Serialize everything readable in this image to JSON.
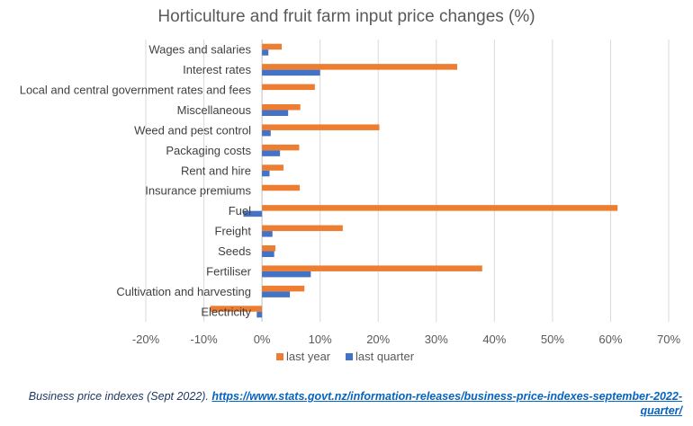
{
  "chart_data": {
    "type": "bar",
    "orientation": "horizontal",
    "title": "Horticulture and fruit farm input price changes (%)",
    "categories": [
      "Wages and salaries",
      "Interest rates",
      "Local and central government rates and fees",
      "Miscellaneous",
      "Weed and pest control",
      "Packaging costs",
      "Rent and hire",
      "Insurance premiums",
      "Fuel",
      "Freight",
      "Seeds",
      "Fertiliser",
      "Cultivation and harvesting",
      "Electricity"
    ],
    "series": [
      {
        "name": "last year",
        "color": "#ed7d31",
        "values": [
          3.4,
          33.6,
          9.1,
          6.6,
          20.2,
          6.4,
          3.7,
          6.5,
          61.2,
          13.9,
          2.3,
          37.9,
          7.3,
          -8.9
        ]
      },
      {
        "name": "last quarter",
        "color": "#4472c4",
        "values": [
          1.1,
          10.0,
          0,
          4.5,
          1.5,
          3.1,
          1.3,
          0,
          -3.2,
          1.8,
          2.1,
          8.4,
          4.8,
          -0.9
        ]
      }
    ],
    "xlim": [
      -20,
      70
    ],
    "ticks": [
      -20,
      -10,
      0,
      10,
      20,
      30,
      40,
      50,
      60,
      70
    ],
    "tick_labels": [
      "-20%",
      "-10%",
      "0%",
      "10%",
      "20%",
      "30%",
      "40%",
      "50%",
      "60%",
      "70%"
    ],
    "grid": true,
    "legend_position": "bottom"
  },
  "caption": {
    "source_text": "Business price indexes (Sept 2022).",
    "link_text": "https://www.stats.govt.nz/information-releases/business-price-indexes-september-2022-quarter/"
  }
}
